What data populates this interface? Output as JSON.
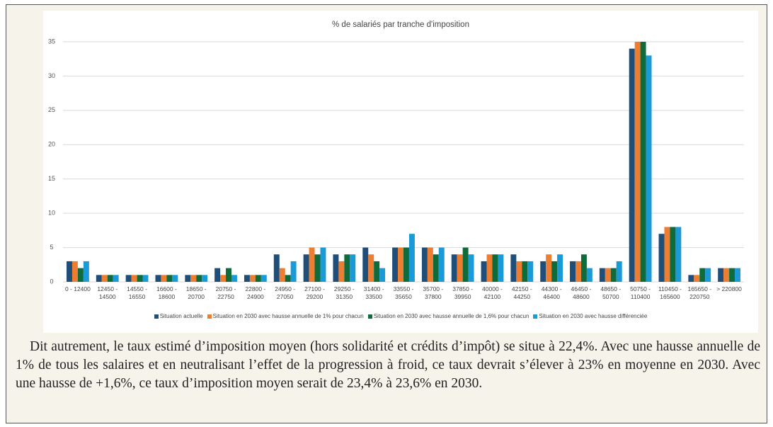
{
  "chart_data": {
    "type": "bar",
    "title": "% de salariés par tranche d'imposition",
    "categories": [
      "0 - 12400",
      "12450 - 14500",
      "14550 - 16550",
      "16600 - 18600",
      "18650 - 20700",
      "20750 - 22750",
      "22800 - 24900",
      "24950 - 27050",
      "27100 - 29200",
      "29250 - 31350",
      "31400 - 33500",
      "33550 - 35650",
      "35700 - 37800",
      "37850 - 39950",
      "40000 - 42100",
      "42150 - 44250",
      "44300 - 46400",
      "46450 - 48600",
      "48650 - 50700",
      "50750 - 110400",
      "110450 - 165600",
      "165650 - 220750",
      "> 220800"
    ],
    "series": [
      {
        "name": "Situation actuelle",
        "color": "#1f4e79",
        "values": [
          3,
          1,
          1,
          1,
          1,
          2,
          1,
          4,
          4,
          4,
          5,
          5,
          5,
          4,
          3,
          4,
          3,
          3,
          2,
          34,
          7,
          1,
          2
        ]
      },
      {
        "name": "Situation en 2030 avec hausse annuelle de 1% pour chacun",
        "color": "#ed7d31",
        "values": [
          3,
          1,
          1,
          1,
          1,
          1,
          1,
          2,
          5,
          3,
          4,
          5,
          5,
          4,
          4,
          3,
          4,
          3,
          2,
          35,
          8,
          1,
          2
        ]
      },
      {
        "name": "Situation en 2030 avec hausse annuelle de 1,6% pour chacun",
        "color": "#0f6b3a",
        "values": [
          2,
          1,
          1,
          1,
          1,
          2,
          1,
          1,
          4,
          4,
          3,
          5,
          4,
          5,
          4,
          3,
          3,
          4,
          2,
          35,
          8,
          2,
          2
        ]
      },
      {
        "name": "Situation en 2030 avec hausse différenciée",
        "color": "#1a9ad6",
        "values": [
          3,
          1,
          1,
          1,
          1,
          1,
          1,
          3,
          5,
          4,
          2,
          7,
          5,
          4,
          4,
          3,
          4,
          2,
          3,
          33,
          8,
          2,
          2
        ]
      }
    ],
    "ylim": [
      0,
      35
    ],
    "yticks": [
      0,
      5,
      10,
      15,
      20,
      25,
      30,
      35
    ],
    "grid": true,
    "legend": "bottom"
  },
  "paragraph": "Dit autrement, le taux estimé d’imposition moyen (hors solidarité et crédits d’impôt) se situe à 22,4%. Avec une hausse annuelle de 1% de tous les salaires et en neutralisant l’effet de la progression à froid, ce taux devrait s’élever à 23% en moyenne en 2030. Avec une hausse de +1,6%, ce taux d’imposition moyen serait de 23,4% à 23,6% en 2030."
}
